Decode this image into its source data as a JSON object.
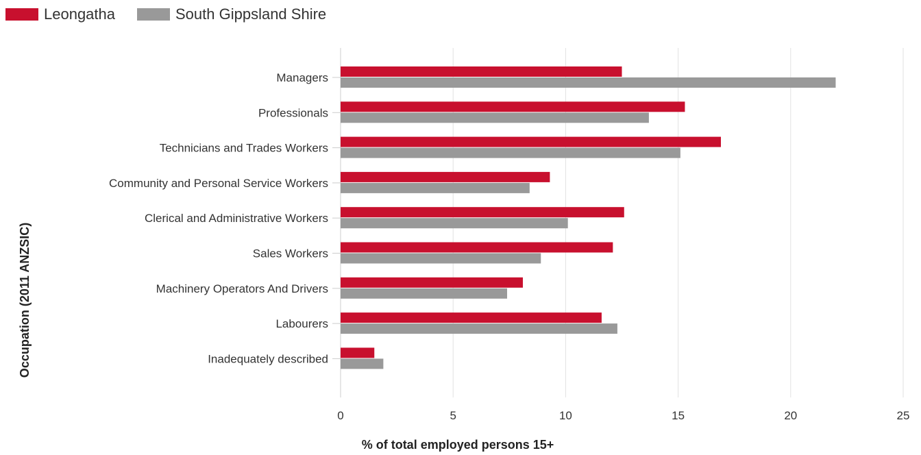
{
  "chart_data": {
    "type": "bar",
    "orientation": "horizontal",
    "title": "",
    "xlabel": "% of total employed persons 15+",
    "ylabel": "Occupation (2011 ANZSIC)",
    "xlim": [
      0,
      25
    ],
    "xticks": [
      0,
      5,
      10,
      15,
      20,
      25
    ],
    "grid": true,
    "legend_position": "top-left",
    "categories": [
      "Managers",
      "Professionals",
      "Technicians and Trades Workers",
      "Community and Personal Service Workers",
      "Clerical and Administrative Workers",
      "Sales Workers",
      "Machinery Operators And Drivers",
      "Labourers",
      "Inadequately described"
    ],
    "series": [
      {
        "name": "Leongatha",
        "color": "#c8102e",
        "values": [
          12.5,
          15.3,
          16.9,
          9.3,
          12.6,
          12.1,
          8.1,
          11.6,
          1.5
        ]
      },
      {
        "name": "South Gippsland Shire",
        "color": "#999999",
        "values": [
          22.0,
          13.7,
          15.1,
          8.4,
          10.1,
          8.9,
          7.4,
          12.3,
          1.9
        ]
      }
    ]
  }
}
